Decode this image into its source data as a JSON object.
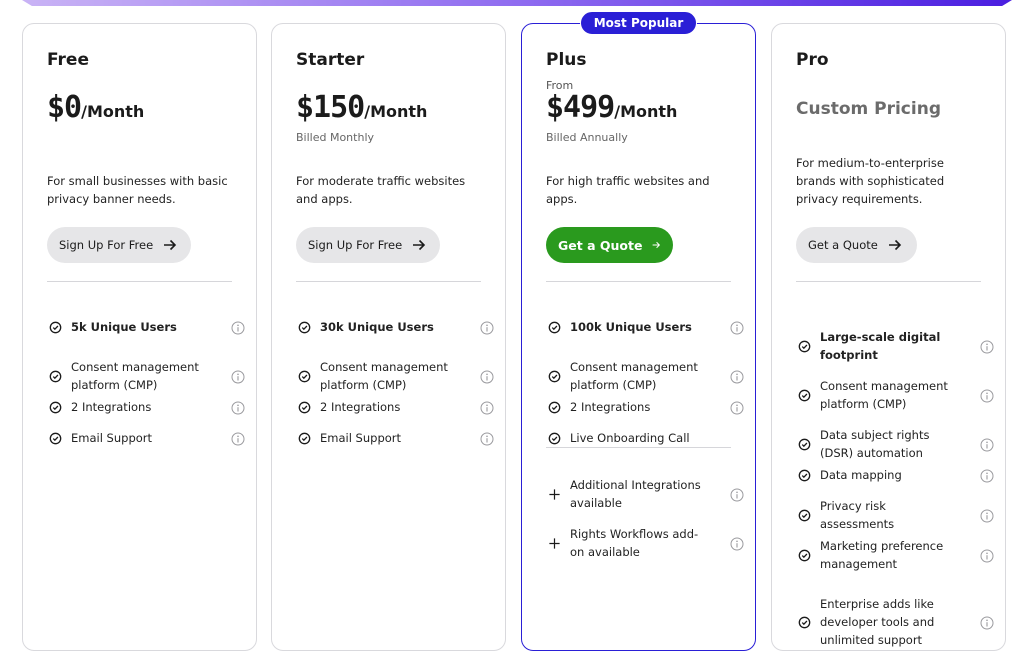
{
  "badge": "Most Popular",
  "plans": [
    {
      "name": "Free",
      "price": "$0",
      "per": "/Month",
      "desc": "For small businesses with basic privacy banner needs.",
      "button": "Sign Up For Free",
      "features": [
        {
          "text": "5k Unique Users",
          "bold": true,
          "icon": "check-circle-icon"
        },
        {
          "text": "Consent management platform (CMP)",
          "icon": "check-circle-icon"
        },
        {
          "text": "2 Integrations",
          "icon": "check-circle-icon"
        },
        {
          "text": "Email Support",
          "icon": "check-circle-icon"
        }
      ]
    },
    {
      "name": "Starter",
      "price": "$150",
      "per": "/Month",
      "billed": "Billed Monthly",
      "desc": "For moderate traffic websites and apps.",
      "button": "Sign Up For Free",
      "features": [
        {
          "text": "30k Unique Users",
          "bold": true,
          "icon": "check-circle-icon"
        },
        {
          "text": "Consent management platform (CMP)",
          "icon": "check-circle-icon"
        },
        {
          "text": "2 Integrations",
          "icon": "check-circle-icon"
        },
        {
          "text": "Email Support",
          "icon": "check-circle-icon"
        }
      ]
    },
    {
      "name": "Plus",
      "from": "From",
      "price": "$499",
      "per": "/Month",
      "billed": "Billed Annually",
      "desc": "For high traffic websites and apps.",
      "button": "Get a Quote",
      "features": [
        {
          "text": "100k Unique Users",
          "bold": true,
          "icon": "check-circle-icon"
        },
        {
          "text": "Consent management platform (CMP)",
          "icon": "check-circle-icon"
        },
        {
          "text": "2 Integrations",
          "icon": "check-circle-icon"
        },
        {
          "text": "Live Onboarding Call",
          "icon": "check-circle-icon"
        }
      ],
      "addons": [
        {
          "text": "Additional Integrations available",
          "icon": "plus-icon"
        },
        {
          "text": "Rights Workflows  add-on available",
          "icon": "plus-icon"
        }
      ]
    },
    {
      "name": "Pro",
      "custom": "Custom Pricing",
      "desc": "For medium-to-enterprise brands with sophisticated privacy requirements.",
      "button": "Get a Quote",
      "features": [
        {
          "text": "Large-scale digital footprint",
          "bold": true,
          "icon": "check-circle-icon"
        },
        {
          "text": "Consent management platform (CMP)",
          "icon": "check-circle-icon"
        },
        {
          "text": "Data subject rights (DSR) automation",
          "icon": "check-circle-icon"
        },
        {
          "text": "Data mapping",
          "icon": "check-circle-icon"
        },
        {
          "text": "Privacy risk assessments",
          "icon": "check-circle-icon"
        },
        {
          "text": "Marketing preference management",
          "icon": "check-circle-icon"
        },
        {
          "text": "Enterprise adds like developer tools and unlimited support",
          "icon": "check-circle-icon"
        }
      ]
    }
  ],
  "colors": {
    "accent": "#2a1fd6",
    "green_button": "#2a9a1e",
    "gray_button": "#e6e6e8"
  }
}
